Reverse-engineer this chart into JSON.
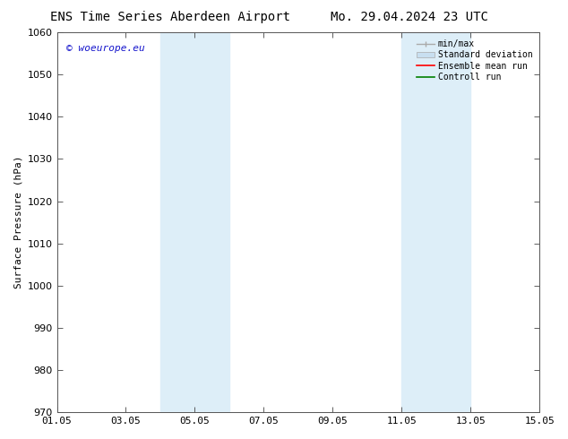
{
  "title_left": "ENS Time Series Aberdeen Airport",
  "title_right": "Mo. 29.04.2024 23 UTC",
  "ylabel": "Surface Pressure (hPa)",
  "ylim": [
    970,
    1060
  ],
  "yticks": [
    970,
    980,
    990,
    1000,
    1010,
    1020,
    1030,
    1040,
    1050,
    1060
  ],
  "xlim": [
    0,
    14
  ],
  "xtick_labels": [
    "01.05",
    "03.05",
    "05.05",
    "07.05",
    "09.05",
    "11.05",
    "13.05",
    "15.05"
  ],
  "xtick_positions": [
    0,
    2,
    4,
    6,
    8,
    10,
    12,
    14
  ],
  "shaded_bands": [
    {
      "x_start": 3.0,
      "x_end": 3.75
    },
    {
      "x_start": 3.75,
      "x_end": 5.0
    },
    {
      "x_start": 10.0,
      "x_end": 10.75
    },
    {
      "x_start": 10.75,
      "x_end": 12.0
    }
  ],
  "shaded_color": "#ddeef8",
  "background_color": "#ffffff",
  "watermark_text": "© woeurope.eu",
  "watermark_color": "#1515cc",
  "legend_labels": [
    "min/max",
    "Standard deviation",
    "Ensemble mean run",
    "Controll run"
  ],
  "legend_colors": [
    "#aaaaaa",
    "#c8dff0",
    "red",
    "green"
  ],
  "title_fontsize": 10,
  "ylabel_fontsize": 8,
  "tick_fontsize": 8,
  "watermark_fontsize": 8,
  "legend_fontsize": 7
}
